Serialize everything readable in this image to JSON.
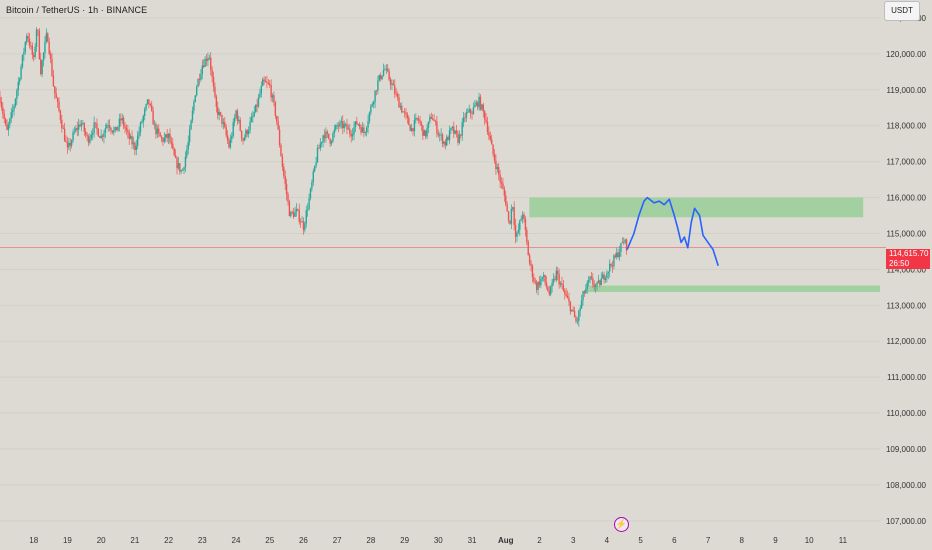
{
  "header": {
    "title": "Bitcoin / TetherUS · 1h · BINANCE"
  },
  "toolbar": {
    "currency_label": "USDT"
  },
  "price_tag": {
    "price": "114,615.70",
    "countdown": "26:50",
    "color": "#f23645"
  },
  "colors": {
    "up": "#26a69a",
    "down": "#ef5350",
    "projection": "#2962ff",
    "zone": "#8fcc8f"
  },
  "chart_data": {
    "type": "candlestick",
    "title": "",
    "ylim": [
      106800,
      121500
    ],
    "y_ticks": [
      107000,
      108000,
      109000,
      110000,
      111000,
      112000,
      113000,
      114000,
      115000,
      116000,
      117000,
      118000,
      119000,
      120000,
      121000
    ],
    "y_tick_labels": [
      "107,000.00",
      "108,000.00",
      "109,000.00",
      "110,000.00",
      "111,000.00",
      "112,000.00",
      "113,000.00",
      "114,000.00",
      "115,000.00",
      "116,000.00",
      "117,000.00",
      "118,000.00",
      "119,000.00",
      "120,000.00",
      "121,000.00"
    ],
    "x_ticks": [
      {
        "day": 18,
        "label": "18"
      },
      {
        "day": 19,
        "label": "19"
      },
      {
        "day": 20,
        "label": "20"
      },
      {
        "day": 21,
        "label": "21"
      },
      {
        "day": 22,
        "label": "22"
      },
      {
        "day": 23,
        "label": "23"
      },
      {
        "day": 24,
        "label": "24"
      },
      {
        "day": 25,
        "label": "25"
      },
      {
        "day": 26,
        "label": "26"
      },
      {
        "day": 27,
        "label": "27"
      },
      {
        "day": 28,
        "label": "28"
      },
      {
        "day": 29,
        "label": "29"
      },
      {
        "day": 30,
        "label": "30"
      },
      {
        "day": 31,
        "label": "31"
      },
      {
        "day": 32,
        "label": "Aug"
      },
      {
        "day": 33,
        "label": "2"
      },
      {
        "day": 34,
        "label": "3"
      },
      {
        "day": 35,
        "label": "4"
      },
      {
        "day": 36,
        "label": "5"
      },
      {
        "day": 37,
        "label": "6"
      },
      {
        "day": 38,
        "label": "7"
      },
      {
        "day": 39,
        "label": "8"
      },
      {
        "day": 40,
        "label": "9"
      },
      {
        "day": 41,
        "label": "10"
      },
      {
        "day": 42,
        "label": "11"
      }
    ],
    "xlim": [
      17.0,
      43.1
    ],
    "price_path": [
      [
        17.0,
        118800
      ],
      [
        17.2,
        117800
      ],
      [
        17.4,
        118500
      ],
      [
        17.6,
        119500
      ],
      [
        17.8,
        120600
      ],
      [
        18.0,
        119800
      ],
      [
        18.1,
        120900
      ],
      [
        18.2,
        119500
      ],
      [
        18.4,
        120600
      ],
      [
        18.6,
        119000
      ],
      [
        18.8,
        118200
      ],
      [
        19.0,
        117300
      ],
      [
        19.2,
        117800
      ],
      [
        19.4,
        118100
      ],
      [
        19.6,
        117600
      ],
      [
        19.8,
        118000
      ],
      [
        20.0,
        117700
      ],
      [
        20.2,
        118100
      ],
      [
        20.4,
        117800
      ],
      [
        20.6,
        118200
      ],
      [
        20.8,
        117700
      ],
      [
        21.0,
        117400
      ],
      [
        21.2,
        118100
      ],
      [
        21.4,
        118700
      ],
      [
        21.6,
        117900
      ],
      [
        21.8,
        117600
      ],
      [
        22.0,
        117700
      ],
      [
        22.2,
        117000
      ],
      [
        22.4,
        116700
      ],
      [
        22.6,
        117600
      ],
      [
        22.8,
        119000
      ],
      [
        23.0,
        119700
      ],
      [
        23.2,
        120000
      ],
      [
        23.4,
        118500
      ],
      [
        23.6,
        118100
      ],
      [
        23.8,
        117400
      ],
      [
        24.0,
        118400
      ],
      [
        24.2,
        117600
      ],
      [
        24.4,
        118000
      ],
      [
        24.6,
        118500
      ],
      [
        24.8,
        119200
      ],
      [
        25.0,
        119100
      ],
      [
        25.2,
        118200
      ],
      [
        25.4,
        116700
      ],
      [
        25.6,
        115500
      ],
      [
        25.8,
        115600
      ],
      [
        26.0,
        115200
      ],
      [
        26.2,
        116100
      ],
      [
        26.4,
        117200
      ],
      [
        26.6,
        117800
      ],
      [
        26.8,
        117600
      ],
      [
        27.0,
        118000
      ],
      [
        27.2,
        118000
      ],
      [
        27.4,
        117800
      ],
      [
        27.6,
        118100
      ],
      [
        27.8,
        117800
      ],
      [
        28.0,
        118500
      ],
      [
        28.2,
        119200
      ],
      [
        28.4,
        119600
      ],
      [
        28.6,
        119200
      ],
      [
        28.8,
        118700
      ],
      [
        29.0,
        118300
      ],
      [
        29.2,
        117900
      ],
      [
        29.4,
        118200
      ],
      [
        29.6,
        117700
      ],
      [
        29.8,
        118300
      ],
      [
        30.0,
        117800
      ],
      [
        30.2,
        117500
      ],
      [
        30.4,
        117900
      ],
      [
        30.6,
        117600
      ],
      [
        30.8,
        118300
      ],
      [
        31.0,
        118400
      ],
      [
        31.2,
        118700
      ],
      [
        31.4,
        118200
      ],
      [
        31.6,
        117300
      ],
      [
        31.8,
        116600
      ],
      [
        32.0,
        115900
      ],
      [
        32.1,
        115200
      ],
      [
        32.2,
        115900
      ],
      [
        32.3,
        114800
      ],
      [
        32.5,
        115600
      ],
      [
        32.7,
        114200
      ],
      [
        32.9,
        113500
      ],
      [
        33.1,
        113800
      ],
      [
        33.3,
        113300
      ],
      [
        33.5,
        113900
      ],
      [
        33.7,
        113400
      ],
      [
        33.9,
        113000
      ],
      [
        34.1,
        112500
      ],
      [
        34.3,
        113300
      ],
      [
        34.5,
        113700
      ],
      [
        34.7,
        113500
      ],
      [
        34.9,
        113800
      ],
      [
        35.1,
        114100
      ],
      [
        35.3,
        114400
      ],
      [
        35.5,
        114800
      ],
      [
        35.6,
        114616
      ]
    ],
    "zones": [
      {
        "x0": 32.7,
        "x1": 42.6,
        "y0": 115450,
        "y1": 116000
      },
      {
        "x0": 34.4,
        "x1": 43.1,
        "y0": 113370,
        "y1": 113550
      }
    ],
    "projection_path": [
      [
        35.6,
        114550
      ],
      [
        35.8,
        115000
      ],
      [
        35.95,
        115500
      ],
      [
        36.1,
        115900
      ],
      [
        36.2,
        116000
      ],
      [
        36.4,
        115850
      ],
      [
        36.55,
        115900
      ],
      [
        36.7,
        115800
      ],
      [
        36.85,
        115950
      ],
      [
        37.0,
        115500
      ],
      [
        37.1,
        115150
      ],
      [
        37.2,
        114750
      ],
      [
        37.3,
        114900
      ],
      [
        37.4,
        114600
      ],
      [
        37.5,
        115300
      ],
      [
        37.6,
        115700
      ],
      [
        37.75,
        115500
      ],
      [
        37.85,
        114950
      ],
      [
        38.0,
        114750
      ],
      [
        38.15,
        114550
      ],
      [
        38.3,
        114100
      ]
    ],
    "current_price": 114615.7
  }
}
